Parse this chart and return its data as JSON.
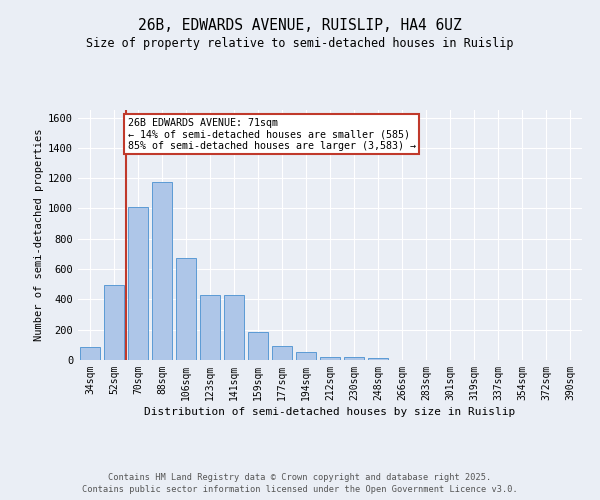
{
  "title_line1": "26B, EDWARDS AVENUE, RUISLIP, HA4 6UZ",
  "title_line2": "Size of property relative to semi-detached houses in Ruislip",
  "xlabel": "Distribution of semi-detached houses by size in Ruislip",
  "ylabel": "Number of semi-detached properties",
  "bar_labels": [
    "34sqm",
    "52sqm",
    "70sqm",
    "88sqm",
    "106sqm",
    "123sqm",
    "141sqm",
    "159sqm",
    "177sqm",
    "194sqm",
    "212sqm",
    "230sqm",
    "248sqm",
    "266sqm",
    "283sqm",
    "301sqm",
    "319sqm",
    "337sqm",
    "354sqm",
    "372sqm",
    "390sqm"
  ],
  "bar_values": [
    88,
    498,
    1012,
    1178,
    672,
    432,
    432,
    186,
    95,
    52,
    18,
    20,
    14,
    0,
    0,
    0,
    0,
    0,
    0,
    0,
    0
  ],
  "bar_color": "#aec6e8",
  "bar_edge_color": "#5b9bd5",
  "vline_pos": 2.5,
  "vline_color": "#c0392b",
  "annotation_text": "26B EDWARDS AVENUE: 71sqm\n← 14% of semi-detached houses are smaller (585)\n85% of semi-detached houses are larger (3,583) →",
  "annotation_box_color": "#ffffff",
  "annotation_box_edge": "#c0392b",
  "ylim": [
    0,
    1650
  ],
  "yticks": [
    0,
    200,
    400,
    600,
    800,
    1000,
    1200,
    1400,
    1600
  ],
  "background_color": "#eaeef5",
  "grid_color": "#ffffff",
  "footer_line1": "Contains HM Land Registry data © Crown copyright and database right 2025.",
  "footer_line2": "Contains public sector information licensed under the Open Government Licence v3.0."
}
